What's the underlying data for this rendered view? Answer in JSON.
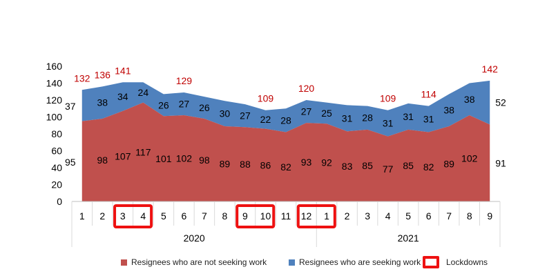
{
  "chart_data": {
    "type": "area",
    "categories": [
      "1",
      "2",
      "3",
      "4",
      "5",
      "6",
      "7",
      "8",
      "9",
      "10",
      "11",
      "12",
      "1",
      "2",
      "3",
      "4",
      "5",
      "6",
      "7",
      "8",
      "9"
    ],
    "year_groups": [
      {
        "label": "2020",
        "months": 12
      },
      {
        "label": "2021",
        "months": 9
      }
    ],
    "series": [
      {
        "name": "Resignees who are not seeking work",
        "color": "#c0504d",
        "values": [
          95,
          98,
          107,
          117,
          101,
          102,
          98,
          89,
          88,
          86,
          82,
          93,
          92,
          83,
          85,
          77,
          85,
          82,
          89,
          102,
          91
        ]
      },
      {
        "name": "Resignees who are seeking work",
        "color": "#4f81bd",
        "values": [
          37,
          38,
          34,
          24,
          26,
          27,
          26,
          30,
          27,
          22,
          28,
          27,
          25,
          31,
          28,
          31,
          31,
          31,
          38,
          38,
          52
        ]
      }
    ],
    "total_labels": [
      {
        "index": 0,
        "value": "132"
      },
      {
        "index": 1,
        "value": "136"
      },
      {
        "index": 2,
        "value": "141"
      },
      {
        "index": 5,
        "value": "129"
      },
      {
        "index": 9,
        "value": "109"
      },
      {
        "index": 11,
        "value": "120"
      },
      {
        "index": 15,
        "value": "109"
      },
      {
        "index": 17,
        "value": "114"
      },
      {
        "index": 20,
        "value": "142"
      }
    ],
    "total_color": "#c00000",
    "lockdown_ranges": [
      [
        2,
        3
      ],
      [
        8,
        9
      ],
      [
        11,
        12
      ]
    ],
    "lockdown_color": "#ee1111",
    "ylim": [
      0,
      160
    ],
    "yticks": [
      0,
      20,
      40,
      60,
      80,
      100,
      120,
      140,
      160
    ],
    "grid": false,
    "legend_position": "bottom"
  },
  "legend": {
    "not_seeking": "Resignees who are not seeking work",
    "seeking": "Resignees who are seeking work",
    "lockdowns": "Lockdowns"
  },
  "colors": {
    "not_seeking": "#c0504d",
    "seeking": "#4f81bd",
    "lockdown": "#ee1111"
  }
}
